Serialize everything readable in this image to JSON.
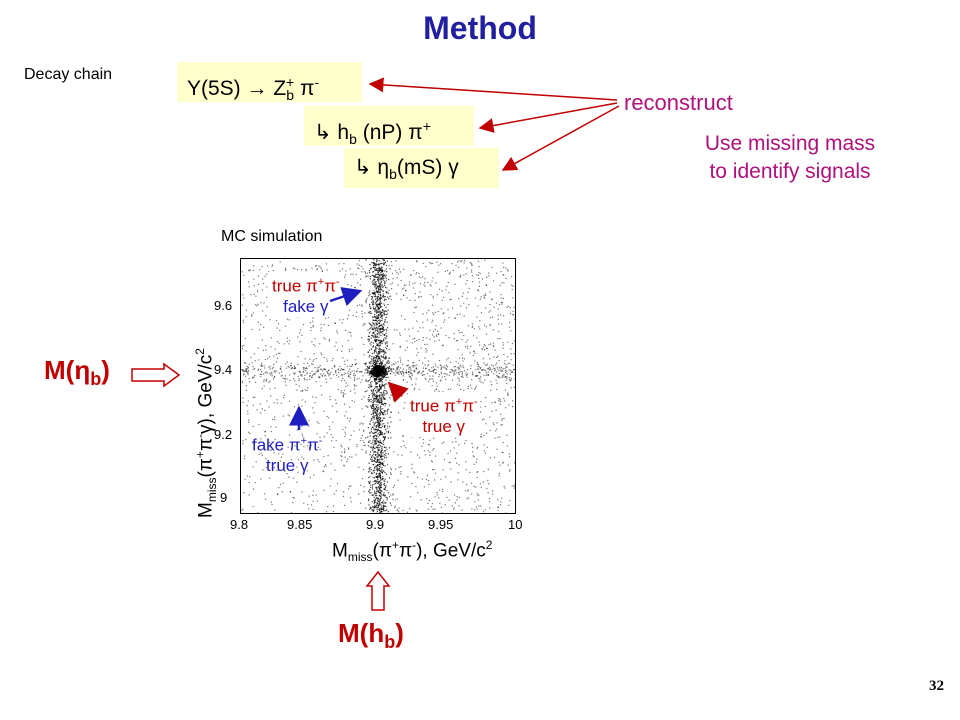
{
  "slide": {
    "title": "Method",
    "decay_label": "Decay chain",
    "chain": {
      "line1": {
        "upsilon": "Υ(5S) → Z",
        "sub": "b",
        "sup": "+",
        "tail": " π",
        "tail_sup": "-"
      },
      "line2": {
        "arrow": "↳ h",
        "sub": "b",
        "mid": " (nP) π",
        "sup": "+"
      },
      "line3": {
        "arrow": "↳ η",
        "sub": "b",
        "tail": "(mS) γ"
      }
    },
    "reconstruct": "reconstruct",
    "missing_mass": [
      "Use missing mass",
      "to identify signals"
    ],
    "mc_label": "MC simulation",
    "plot": {
      "x_ticks": [
        "9.8",
        "9.85",
        "9.9",
        "9.95",
        "10"
      ],
      "y_ticks": [
        "9",
        "9.2",
        "9.4",
        "9.6"
      ],
      "xlabel": {
        "main": "M",
        "sub": "miss",
        "rest": "(π",
        "s1": "+",
        "mid": "π",
        "s2": "-",
        "end": "), GeV/c",
        "s3": "2"
      },
      "ylabel": {
        "main": "M",
        "sub": "miss",
        "rest": "(π",
        "s1": "+",
        "mid": "π",
        "s2": "-",
        "mid2": "γ), GeV/c",
        "s3": "2"
      },
      "annotations": {
        "a1": {
          "l1": "true π",
          "l1b": "+",
          "l1c": "π",
          "l1d": "-",
          "l2": "fake γ"
        },
        "a2": {
          "l1": "true π",
          "l1b": "+",
          "l1c": "π",
          "l1d": "-",
          "l2": "true γ"
        },
        "a3": {
          "l1": "fake π",
          "l1b": "+",
          "l1c": "π",
          "l1d": "-",
          "l2": "true γ"
        }
      }
    },
    "m_etab": {
      "pre": "M(η",
      "sub": "b",
      "post": ")"
    },
    "m_hb": {
      "pre": "M(h",
      "sub": "b",
      "post": ")"
    },
    "page_number": "32",
    "colors": {
      "title": "#1f1f9f",
      "box": "#ffffcc",
      "accent": "#b0107b",
      "red": "#c00000",
      "blue": "#1f1fbf"
    }
  },
  "chart_data": {
    "type": "scatter",
    "title": "MC simulation",
    "xlabel": "Mmiss(π+π-), GeV/c2",
    "ylabel": "Mmiss(π+π-γ), GeV/c2",
    "xlim": [
      9.8,
      10.0
    ],
    "ylim": [
      8.95,
      9.75
    ],
    "x_ticks": [
      9.8,
      9.85,
      9.9,
      9.95,
      10.0
    ],
    "y_ticks": [
      9.0,
      9.2,
      9.4,
      9.6
    ],
    "features": [
      {
        "name": "true π+π- fake γ",
        "kind": "vertical band",
        "x": 9.9
      },
      {
        "name": "fake π+π- true γ",
        "kind": "horizontal band",
        "y": 9.4
      },
      {
        "name": "true π+π- true γ",
        "kind": "peak",
        "x": 9.9,
        "y": 9.4
      }
    ]
  }
}
